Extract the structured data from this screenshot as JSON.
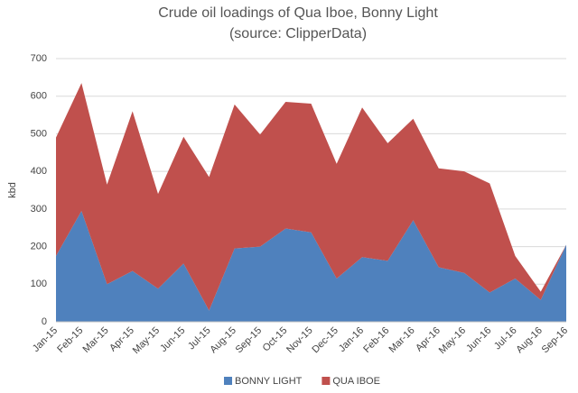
{
  "chart_data": {
    "type": "stacked_area",
    "title": "Crude oil loadings of Qua Iboe, Bonny Light",
    "subtitle": "(source: ClipperData)",
    "y_label": "kbd",
    "categories": [
      "Jan-15",
      "Feb-15",
      "Mar-15",
      "Apr-15",
      "May-15",
      "Jun-15",
      "Jul-15",
      "Aug-15",
      "Sep-15",
      "Oct-15",
      "Nov-15",
      "Dec-15",
      "Jan-16",
      "Feb-16",
      "Mar-16",
      "Apr-16",
      "May-16",
      "Jun-16",
      "Jul-16",
      "Aug-16",
      "Sep-16"
    ],
    "series": [
      {
        "name": "BONNY LIGHT",
        "color": "#4f81bd",
        "values": [
          175,
          295,
          100,
          135,
          88,
          155,
          30,
          195,
          200,
          248,
          238,
          115,
          172,
          162,
          270,
          145,
          130,
          78,
          115,
          58,
          205
        ]
      },
      {
        "name": "QUA IBOE",
        "color": "#c0504d",
        "values": [
          315,
          340,
          265,
          425,
          252,
          337,
          355,
          383,
          298,
          337,
          342,
          305,
          398,
          313,
          270,
          263,
          270,
          290,
          60,
          22,
          0
        ]
      }
    ],
    "ylim": [
      0,
      700
    ],
    "yticks": [
      0,
      100,
      200,
      300,
      400,
      500,
      600,
      700
    ],
    "grid": true,
    "legend": "bottom"
  }
}
